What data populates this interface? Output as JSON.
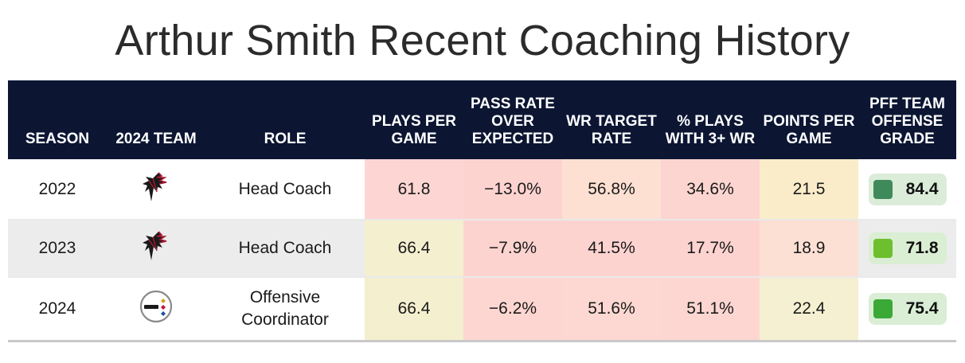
{
  "title": "Arthur Smith Recent Coaching History",
  "columns": [
    {
      "label": "SEASON"
    },
    {
      "label": "2024 TEAM"
    },
    {
      "label": "ROLE"
    },
    {
      "label": "PLAYS PER GAME"
    },
    {
      "label": "PASS RATE OVER EXPECTED"
    },
    {
      "label": "WR TARGET RATE"
    },
    {
      "label": "% PLAYS WITH 3+ WR"
    },
    {
      "label": "POINTS PER GAME"
    },
    {
      "label": "PFF TEAM OFFENSE GRADE"
    }
  ],
  "rows": [
    {
      "season": "2022",
      "team_logo": "falcons-logo-icon",
      "role": "Head Coach",
      "plays_per_game": "61.8",
      "proe": "−13.0%",
      "wr_target_rate": "56.8%",
      "pct_3wr": "34.6%",
      "points_per_game": "21.5",
      "offense_grade": "84.4",
      "colors": {
        "plays_per_game": "#fdd6d3",
        "proe": "#fdd3d0",
        "wr_target_rate": "#fde0d2",
        "pct_3wr": "#fdd5d0",
        "points_per_game": "#fbecc9",
        "grade_pill": "#dbecd9",
        "grade_square": "#3f8a5a"
      }
    },
    {
      "season": "2023",
      "team_logo": "falcons-logo-icon",
      "role": "Head Coach",
      "plays_per_game": "66.4",
      "proe": "−7.9%",
      "wr_target_rate": "41.5%",
      "pct_3wr": "17.7%",
      "points_per_game": "18.9",
      "offense_grade": "71.8",
      "colors": {
        "plays_per_game": "#f4efcf",
        "proe": "#fdd3d0",
        "wr_target_rate": "#fdd3d0",
        "pct_3wr": "#fdd3d0",
        "points_per_game": "#fce0d3",
        "grade_pill": "#d9eed2",
        "grade_square": "#6dbf2e"
      }
    },
    {
      "season": "2024",
      "team_logo": "steelers-logo-icon",
      "role": "Offensive Coordinator",
      "plays_per_game": "66.4",
      "proe": "−6.2%",
      "wr_target_rate": "51.6%",
      "pct_3wr": "51.1%",
      "points_per_game": "22.4",
      "offense_grade": "75.4",
      "colors": {
        "plays_per_game": "#f4efcf",
        "proe": "#fdd6d1",
        "wr_target_rate": "#fdd8d2",
        "pct_3wr": "#fdd6d1",
        "points_per_game": "#f5f0d2",
        "grade_pill": "#d9eed5",
        "grade_square": "#3aa936"
      }
    }
  ],
  "chart_data": {
    "type": "table",
    "title": "Arthur Smith Recent Coaching History",
    "columns": [
      "SEASON",
      "2024 TEAM",
      "ROLE",
      "PLAYS PER GAME",
      "PASS RATE OVER EXPECTED",
      "WR TARGET RATE",
      "% PLAYS WITH 3+ WR",
      "POINTS PER GAME",
      "PFF TEAM OFFENSE GRADE"
    ],
    "rows": [
      [
        "2022",
        "Falcons",
        "Head Coach",
        61.8,
        -13.0,
        56.8,
        34.6,
        21.5,
        84.4
      ],
      [
        "2023",
        "Falcons",
        "Head Coach",
        66.4,
        -7.9,
        41.5,
        17.7,
        18.9,
        71.8
      ],
      [
        "2024",
        "Steelers",
        "Offensive Coordinator",
        66.4,
        -6.2,
        51.6,
        51.1,
        22.4,
        75.4
      ]
    ]
  }
}
